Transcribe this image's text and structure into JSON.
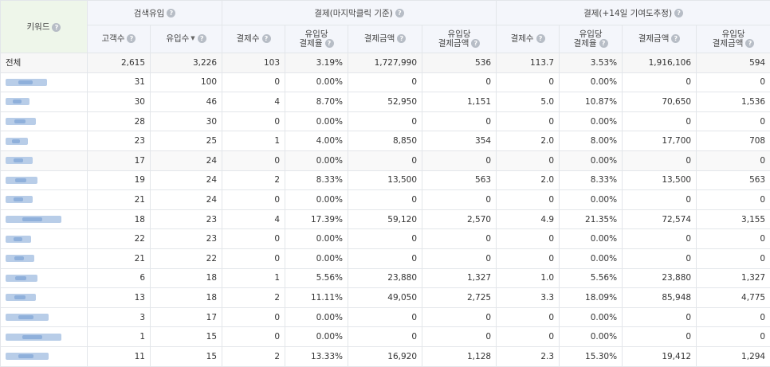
{
  "headers": {
    "keyword": "키워드",
    "group_search": "검색유입",
    "group_last_click": "결제(마지막클릭 기준)",
    "group_contribution": "결제(+14일 기여도추정)",
    "customers": "고객수",
    "inflow": "유입수",
    "pay_count": "결제수",
    "pay_rate_1": "유입당",
    "pay_rate_2": "결제율",
    "pay_amount": "결제금액",
    "per_amount_1": "유입당",
    "per_amount_2": "결제금액",
    "pay_count2": "결제수",
    "pay_rate2_1": "유입당",
    "pay_rate2_2": "결제율",
    "pay_amount2": "결제금액",
    "per_amount2_1": "유입당",
    "per_amount2_2": "결제금액"
  },
  "help_icon": "?",
  "sort_icon": "▼",
  "total": {
    "label": "전체",
    "cells": [
      "2,615",
      "3,226",
      "103",
      "3.19%",
      "1,727,990",
      "536",
      "113.7",
      "3.53%",
      "1,916,106",
      "594"
    ]
  },
  "rows": [
    {
      "kw_w": 52,
      "cells": [
        "31",
        "100",
        "0",
        "0.00%",
        "0",
        "0",
        "0",
        "0.00%",
        "0",
        "0"
      ]
    },
    {
      "kw_w": 30,
      "cells": [
        "30",
        "46",
        "4",
        "8.70%",
        "52,950",
        "1,151",
        "5.0",
        "10.87%",
        "70,650",
        "1,536"
      ]
    },
    {
      "kw_w": 38,
      "cells": [
        "28",
        "30",
        "0",
        "0.00%",
        "0",
        "0",
        "0",
        "0.00%",
        "0",
        "0"
      ]
    },
    {
      "kw_w": 28,
      "cells": [
        "23",
        "25",
        "1",
        "4.00%",
        "8,850",
        "354",
        "2.0",
        "8.00%",
        "17,700",
        "708"
      ]
    },
    {
      "kw_w": 34,
      "cells": [
        "17",
        "24",
        "0",
        "0.00%",
        "0",
        "0",
        "0",
        "0.00%",
        "0",
        "0"
      ]
    },
    {
      "kw_w": 40,
      "cells": [
        "19",
        "24",
        "2",
        "8.33%",
        "13,500",
        "563",
        "2.0",
        "8.33%",
        "13,500",
        "563"
      ]
    },
    {
      "kw_w": 34,
      "cells": [
        "21",
        "24",
        "0",
        "0.00%",
        "0",
        "0",
        "0",
        "0.00%",
        "0",
        "0"
      ]
    },
    {
      "kw_w": 70,
      "cells": [
        "18",
        "23",
        "4",
        "17.39%",
        "59,120",
        "2,570",
        "4.9",
        "21.35%",
        "72,574",
        "3,155"
      ]
    },
    {
      "kw_w": 32,
      "cells": [
        "22",
        "23",
        "0",
        "0.00%",
        "0",
        "0",
        "0",
        "0.00%",
        "0",
        "0"
      ]
    },
    {
      "kw_w": 36,
      "cells": [
        "21",
        "22",
        "0",
        "0.00%",
        "0",
        "0",
        "0",
        "0.00%",
        "0",
        "0"
      ]
    },
    {
      "kw_w": 40,
      "cells": [
        "6",
        "18",
        "1",
        "5.56%",
        "23,880",
        "1,327",
        "1.0",
        "5.56%",
        "23,880",
        "1,327"
      ]
    },
    {
      "kw_w": 38,
      "cells": [
        "13",
        "18",
        "2",
        "11.11%",
        "49,050",
        "2,725",
        "3.3",
        "18.09%",
        "85,948",
        "4,775"
      ]
    },
    {
      "kw_w": 54,
      "cells": [
        "3",
        "17",
        "0",
        "0.00%",
        "0",
        "0",
        "0",
        "0.00%",
        "0",
        "0"
      ]
    },
    {
      "kw_w": 70,
      "cells": [
        "1",
        "15",
        "0",
        "0.00%",
        "0",
        "0",
        "0",
        "0.00%",
        "0",
        "0"
      ]
    },
    {
      "kw_w": 54,
      "cells": [
        "11",
        "15",
        "2",
        "13.33%",
        "16,920",
        "1,128",
        "2.3",
        "15.30%",
        "19,412",
        "1,294"
      ]
    }
  ]
}
